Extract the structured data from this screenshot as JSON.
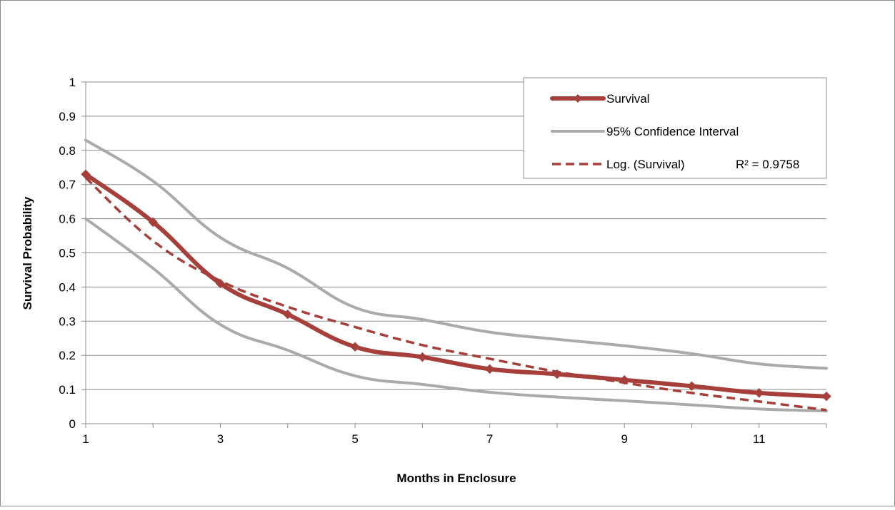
{
  "colors": {
    "survival": "#A63F3A",
    "confidence": "#AAAAAA",
    "trend": "#A63F3A",
    "grid": "#8C8C8C",
    "frame": "#8C8C8C"
  },
  "chart_data": {
    "type": "line",
    "xlabel": "Months in Enclosure",
    "ylabel": "Survival Probability",
    "xlim": [
      1,
      12
    ],
    "ylim": [
      0,
      1
    ],
    "x_ticks": [
      "1",
      "3",
      "5",
      "7",
      "9",
      "11"
    ],
    "y_ticks": [
      "0",
      "0.1",
      "0.2",
      "0.3",
      "0.4",
      "0.5",
      "0.6",
      "0.7",
      "0.8",
      "0.9",
      "1"
    ],
    "grid": "horizontal",
    "legend_position": "top-right",
    "x": [
      1,
      2,
      3,
      4,
      5,
      6,
      7,
      8,
      9,
      10,
      11,
      12
    ],
    "series": [
      {
        "name": "Survival",
        "style": "solid-thick-diamond-markers",
        "values": [
          0.73,
          0.59,
          0.41,
          0.32,
          0.225,
          0.195,
          0.16,
          0.145,
          0.128,
          0.11,
          0.09,
          0.08
        ]
      },
      {
        "name": "95% Confidence Interval",
        "style": "solid-gray",
        "values": [
          0.83,
          0.71,
          0.545,
          0.455,
          0.34,
          0.305,
          0.268,
          0.247,
          0.228,
          0.205,
          0.175,
          0.162
        ]
      },
      {
        "name": "",
        "style": "solid-gray",
        "values": [
          0.6,
          0.455,
          0.29,
          0.215,
          0.14,
          0.115,
          0.092,
          0.078,
          0.067,
          0.055,
          0.043,
          0.037
        ]
      },
      {
        "name": "Log. (Survival)",
        "style": "dashed",
        "values": [
          0.72,
          0.535,
          0.418,
          0.342,
          0.283,
          0.23,
          0.19,
          0.152,
          0.12,
          0.09,
          0.065,
          0.04
        ]
      }
    ],
    "legend": [
      {
        "label": "Survival",
        "series": 0
      },
      {
        "label": "95% Confidence Interval",
        "series": 1
      },
      {
        "label": "Log. (Survival)",
        "series": 3
      }
    ],
    "annotation": "R² = 0.9758"
  }
}
